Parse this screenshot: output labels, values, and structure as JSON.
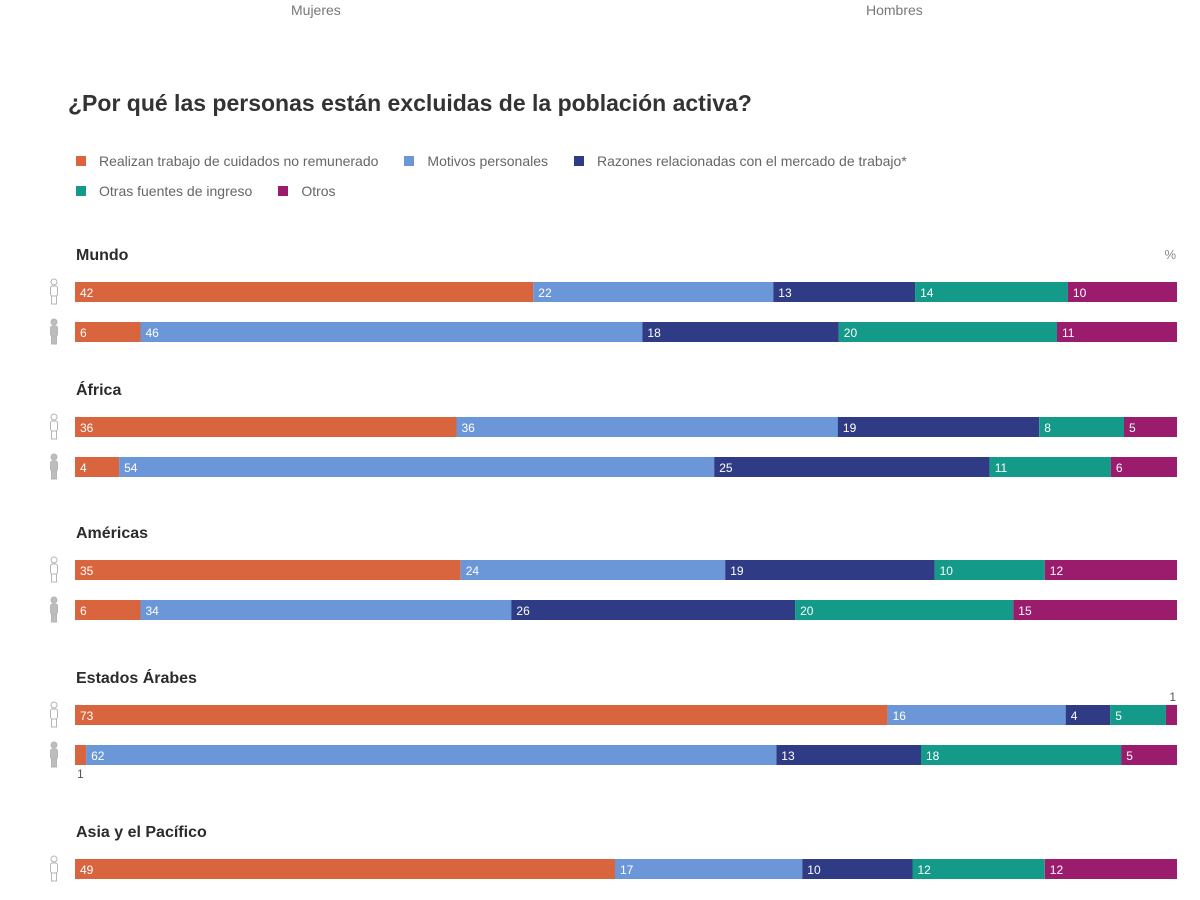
{
  "header": {
    "left_label": "Mujeres",
    "right_label": "Hombres"
  },
  "chart_data": {
    "type": "bar",
    "stacked": true,
    "orientation": "horizontal",
    "title": "¿Por qué las personas están excluidas de la población activa?",
    "unit": "%",
    "xlim": [
      0,
      100
    ],
    "legend_position": "top-left",
    "series": [
      {
        "name": "Realizan trabajo de cuidados no remunerado",
        "color": "#d9653f"
      },
      {
        "name": "Motivos personales",
        "color": "#6b97d8"
      },
      {
        "name": "Razones relacionadas con el mercado de trabajo*",
        "color": "#2f3b84"
      },
      {
        "name": "Otras fuentes de ingreso",
        "color": "#139a88"
      },
      {
        "name": "Otros",
        "color": "#9b1b6c"
      }
    ],
    "groups": [
      {
        "region": "Mundo",
        "rows": [
          {
            "gender": "Mujeres",
            "values": [
              42,
              22,
              13,
              14,
              10
            ]
          },
          {
            "gender": "Hombres",
            "values": [
              6,
              46,
              18,
              20,
              11
            ]
          }
        ]
      },
      {
        "region": "África",
        "rows": [
          {
            "gender": "Mujeres",
            "values": [
              36,
              36,
              19,
              8,
              5
            ]
          },
          {
            "gender": "Hombres",
            "values": [
              4,
              54,
              25,
              11,
              6
            ]
          }
        ]
      },
      {
        "region": "Américas",
        "rows": [
          {
            "gender": "Mujeres",
            "values": [
              35,
              24,
              19,
              10,
              12
            ]
          },
          {
            "gender": "Hombres",
            "values": [
              6,
              34,
              26,
              20,
              15
            ]
          }
        ]
      },
      {
        "region": "Estados Árabes",
        "rows": [
          {
            "gender": "Mujeres",
            "values": [
              73,
              16,
              4,
              5,
              1
            ]
          },
          {
            "gender": "Hombres",
            "values": [
              1,
              62,
              13,
              18,
              5
            ]
          }
        ]
      },
      {
        "region": "Asia y el Pacífico",
        "rows": [
          {
            "gender": "Mujeres",
            "values": [
              49,
              17,
              10,
              12,
              12
            ]
          }
        ]
      }
    ]
  }
}
